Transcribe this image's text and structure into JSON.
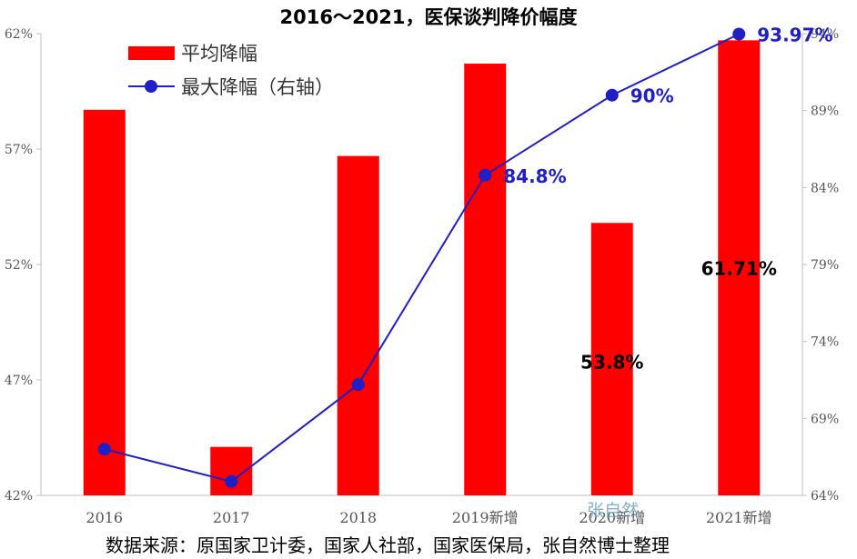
{
  "chart_data": {
    "type": "bar",
    "title": "2016～2021，医保谈判降价幅度",
    "categories": [
      "2016",
      "2017",
      "2018",
      "2019新增",
      "2020新增",
      "2021新增"
    ],
    "y_left": {
      "min": 42,
      "max": 62,
      "ticks": [
        "42%",
        "47%",
        "52%",
        "57%",
        "62%"
      ],
      "tick_values": [
        42,
        47,
        52,
        57,
        62
      ]
    },
    "y_right": {
      "min": 64,
      "max": 94,
      "ticks": [
        "64%",
        "69%",
        "74%",
        "79%",
        "84%",
        "89%",
        "94%"
      ],
      "tick_values": [
        64,
        69,
        74,
        79,
        84,
        89,
        94
      ]
    },
    "series": [
      {
        "name": "平均降幅",
        "kind": "bar",
        "axis": "left",
        "color": "#ff0000",
        "values": [
          58.7,
          44.1,
          56.7,
          60.7,
          53.8,
          61.71
        ],
        "labels": [
          "",
          "",
          "",
          "",
          "53.8%",
          "61.71%"
        ]
      },
      {
        "name": "最大降幅（右轴）",
        "kind": "line",
        "axis": "right",
        "color": "#1f1fc4",
        "values": [
          67.0,
          64.9,
          71.2,
          84.8,
          90.0,
          93.97
        ],
        "labels": [
          "",
          "",
          "",
          "84.8%",
          "90%",
          "93.97%"
        ]
      }
    ],
    "legend_position": "top-left",
    "grid": false
  },
  "watermark": "张自然",
  "source_note": "数据来源：原国家卫计委，国家人社部，国家医保局，张自然博士整理"
}
